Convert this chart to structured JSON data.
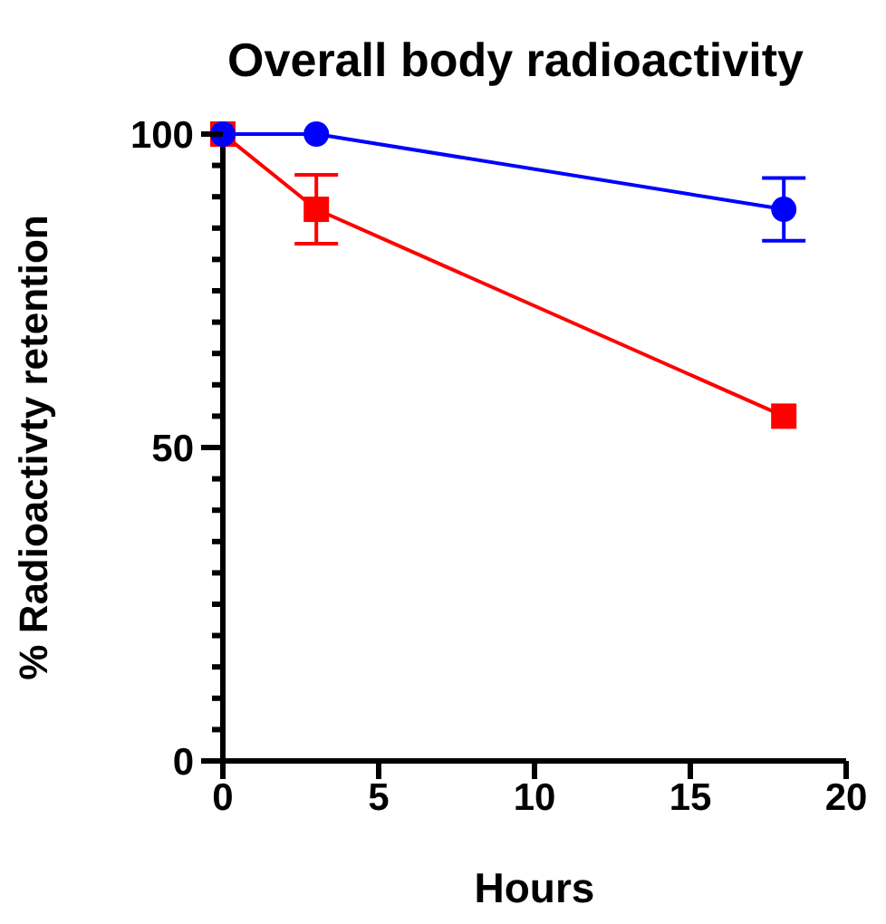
{
  "chart_data": {
    "type": "line",
    "title": "Overall body radioactivity",
    "xlabel": "Hours",
    "ylabel": "% Radioactivty retention",
    "x": [
      0,
      3,
      18
    ],
    "series": [
      {
        "color": "#0000ff",
        "marker": "circle",
        "values": [
          100,
          100,
          88
        ],
        "errors": [
          null,
          null,
          5
        ]
      },
      {
        "color": "#ff0000",
        "marker": "square",
        "values": [
          100,
          88,
          55
        ],
        "errors": [
          null,
          5.5,
          null
        ]
      }
    ],
    "xlim": [
      0,
      20
    ],
    "xticks": [
      0,
      5,
      10,
      15,
      20
    ],
    "ylim": [
      0,
      100
    ],
    "yticks": [
      0,
      {
        "value": 5,
        "label": null
      },
      {
        "value": 10,
        "label": null
      },
      {
        "value": 15,
        "label": null
      },
      {
        "value": 20,
        "label": null
      },
      {
        "value": 25,
        "label": null
      },
      {
        "value": 30,
        "label": null
      },
      {
        "value": 35,
        "label": null
      },
      {
        "value": 40,
        "label": null
      },
      {
        "value": 45,
        "label": null
      },
      50,
      {
        "value": 55,
        "label": null
      },
      {
        "value": 60,
        "label": null
      },
      {
        "value": 65,
        "label": null
      },
      {
        "value": 70,
        "label": null
      },
      {
        "value": 75,
        "label": null
      },
      {
        "value": 80,
        "label": null
      },
      {
        "value": 85,
        "label": null
      },
      {
        "value": 90,
        "label": null
      },
      {
        "value": 95,
        "label": null
      },
      100
    ],
    "grid": false,
    "legend": false
  }
}
